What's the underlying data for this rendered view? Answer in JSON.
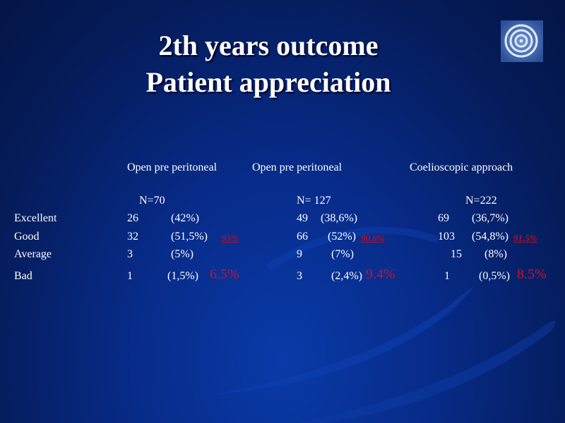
{
  "slide": {
    "title_line1": "2th years outcome",
    "title_line2": "Patient appreciation",
    "logo_icon": "concentric-rings-logo"
  },
  "columns": [
    {
      "heading": "Open pre peritoneal",
      "n": "N=70"
    },
    {
      "heading": "Open pre peritoneal",
      "n": "N= 127"
    },
    {
      "heading": "Coelioscopic approach",
      "n": "N=222"
    }
  ],
  "rows": [
    {
      "label": "Excellent",
      "cells": [
        [
          "26",
          "(42%)"
        ],
        [
          "49",
          "(38,6%)"
        ],
        [
          "69",
          "(36,7%)"
        ]
      ]
    },
    {
      "label": "Good",
      "cells": [
        [
          "32",
          "(51,5%)"
        ],
        [
          "66",
          "(52%)"
        ],
        [
          "103",
          "(54,8%)"
        ]
      ]
    },
    {
      "label": "Average",
      "cells": [
        [
          "3",
          "(5%)"
        ],
        [
          "9",
          "(7%)"
        ],
        [
          "15",
          "(8%)"
        ]
      ]
    },
    {
      "label": "Bad",
      "cells": [
        [
          "1",
          "(1,5%)"
        ],
        [
          "3",
          "(2,4%)"
        ],
        [
          "1",
          "(0,5%)"
        ]
      ]
    }
  ],
  "good_totals": [
    "93%",
    "90.6%",
    "91.5% "
  ],
  "bad_totals": [
    "6.5%",
    "9.4%",
    "8.5%"
  ],
  "colors": {
    "accent_red": "#c0102a",
    "background": "#072a86"
  }
}
